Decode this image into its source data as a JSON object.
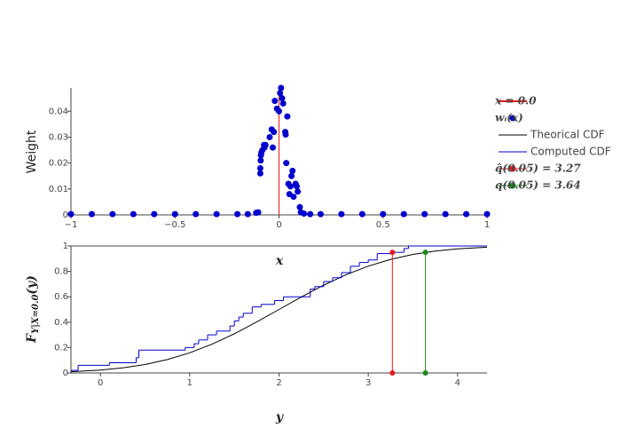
{
  "chart_data": [
    {
      "type": "scatter",
      "xlabel": "x",
      "ylabel": "Weight",
      "xlim": [
        -1,
        1
      ],
      "ylim": [
        0,
        0.049
      ],
      "xticks": [
        {
          "value": -1,
          "label": "−1"
        },
        {
          "value": -0.5,
          "label": "−0.5"
        },
        0,
        0.5,
        1
      ],
      "yticks": [
        0,
        0.01,
        0.02,
        0.03,
        0.04
      ],
      "series": [
        {
          "name": "x = 0.0",
          "color": "#e41a1c",
          "mode": "lines",
          "x": [
            0,
            0
          ],
          "values": [
            0,
            0.049
          ]
        },
        {
          "name": "wᵢ(x)",
          "color": "#0000cc",
          "mode": "markers",
          "x": [
            -1,
            -0.9,
            -0.8,
            -0.7,
            -0.6,
            -0.5,
            -0.4,
            -0.3,
            -0.2,
            -0.15,
            -0.11,
            -0.1,
            -0.09,
            -0.09,
            -0.088,
            -0.087,
            -0.085,
            -0.08,
            -0.072,
            -0.07,
            -0.065,
            -0.045,
            -0.035,
            -0.03,
            -0.025,
            -0.02,
            -0.01,
            0,
            0.005,
            0.01,
            0.015,
            0.02,
            0.03,
            0.032,
            0.035,
            0.04,
            0.045,
            0.05,
            0.055,
            0.06,
            0.065,
            0.07,
            0.08,
            0.085,
            0.09,
            0.1,
            0.105,
            0.12,
            0.15,
            0.2,
            0.3,
            0.4,
            0.5,
            0.6,
            0.7,
            0.8,
            0.9,
            1
          ],
          "values": [
            0.0003,
            0.0003,
            0.0003,
            0.0003,
            0.0003,
            0.0003,
            0.0003,
            0.0003,
            0.0003,
            0.0003,
            0.0008,
            0.001,
            0.016,
            0.018,
            0.021,
            0.023,
            0.024,
            0.025,
            0.027,
            0.026,
            0.027,
            0.03,
            0.033,
            0.026,
            0.032,
            0.044,
            0.041,
            0.04,
            0.047,
            0.049,
            0.045,
            0.043,
            0.032,
            0.031,
            0.02,
            0.038,
            0.012,
            0.008,
            0.011,
            0.015,
            0.017,
            0.007,
            0.012,
            0.011,
            0.009,
            0.003,
            0.001,
            0.0005,
            0.0003,
            0.0003,
            0.0003,
            0.0003,
            0.0003,
            0.0003,
            0.0003,
            0.0003,
            0.0003,
            0.0003
          ]
        }
      ]
    },
    {
      "type": "line",
      "xlabel": "y",
      "ylabel": {
        "main": "F",
        "sub": "Y|X=0.0",
        "tail": "(y)"
      },
      "xlim": [
        -0.33,
        4.33
      ],
      "ylim": [
        0,
        1
      ],
      "xticks": [
        0,
        1,
        2,
        3,
        4
      ],
      "yticks": [
        0,
        0.2,
        0.4,
        0.6,
        0.8,
        1
      ],
      "series": [
        {
          "name": "Theorical CDF",
          "color": "#000000",
          "mode": "lines",
          "x": [
            -0.33,
            0,
            0.25,
            0.5,
            0.75,
            1,
            1.25,
            1.5,
            1.75,
            2,
            2.25,
            2.5,
            2.75,
            3,
            3.25,
            3.5,
            3.75,
            4,
            4.33
          ],
          "values": [
            0.0099,
            0.0228,
            0.0401,
            0.0668,
            0.1056,
            0.1587,
            0.2266,
            0.3085,
            0.4013,
            0.5,
            0.5987,
            0.6915,
            0.7734,
            0.8413,
            0.8944,
            0.9332,
            0.9599,
            0.9772,
            0.9901
          ]
        },
        {
          "name": "Computed CDF",
          "color": "#0000cc",
          "mode": "lines",
          "line_shape": "hv",
          "x": [
            -0.33,
            -0.25,
            0.1,
            0.4,
            0.43,
            0.95,
            1.05,
            1.1,
            1.2,
            1.3,
            1.45,
            1.5,
            1.55,
            1.6,
            1.7,
            1.8,
            1.95,
            2.05,
            2.35,
            2.4,
            2.5,
            2.6,
            2.7,
            2.8,
            2.9,
            3.0,
            3.1,
            3.25,
            3.4,
            3.45,
            4.33
          ],
          "values": [
            0.02,
            0.06,
            0.08,
            0.12,
            0.18,
            0.2,
            0.23,
            0.26,
            0.3,
            0.33,
            0.37,
            0.41,
            0.44,
            0.47,
            0.52,
            0.54,
            0.57,
            0.6,
            0.66,
            0.68,
            0.72,
            0.75,
            0.79,
            0.84,
            0.87,
            0.89,
            0.94,
            0.95,
            0.98,
            1,
            1
          ]
        },
        {
          "name": "q̂(0.05) = 3.27",
          "color": "#e41a1c",
          "mode": "lines+markers",
          "x": [
            3.27,
            3.27
          ],
          "values": [
            0,
            0.95
          ]
        },
        {
          "name": "q(0.05) = 3.64",
          "color": "#1a8c1a",
          "mode": "lines+markers",
          "x": [
            3.64,
            3.64
          ],
          "values": [
            0,
            0.95
          ]
        }
      ]
    }
  ]
}
